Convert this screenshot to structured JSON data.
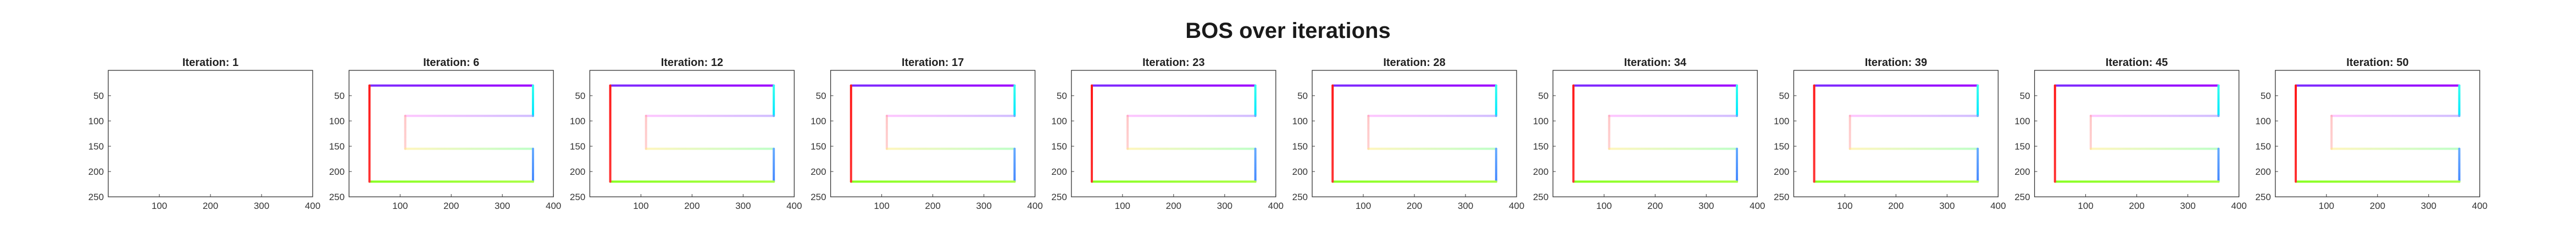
{
  "figure": {
    "title": "BOS over iterations"
  },
  "chart_data": [
    {
      "type": "line",
      "title": "Iteration: 1",
      "xlim": [
        0,
        400
      ],
      "ylim": [
        0,
        250
      ],
      "y_reversed": true,
      "xticks": [
        100,
        200,
        300,
        400
      ],
      "yticks": [
        50,
        100,
        150,
        200,
        250
      ],
      "grid": false,
      "show_path": false
    },
    {
      "type": "line",
      "title": "Iteration: 6",
      "xlim": [
        0,
        400
      ],
      "ylim": [
        0,
        250
      ],
      "y_reversed": true,
      "xticks": [
        100,
        200,
        300,
        400
      ],
      "yticks": [
        50,
        100,
        150,
        200,
        250
      ],
      "grid": false,
      "show_path": true
    },
    {
      "type": "line",
      "title": "Iteration: 12",
      "xlim": [
        0,
        400
      ],
      "ylim": [
        0,
        250
      ],
      "y_reversed": true,
      "xticks": [
        100,
        200,
        300,
        400
      ],
      "yticks": [
        50,
        100,
        150,
        200,
        250
      ],
      "grid": false,
      "show_path": true
    },
    {
      "type": "line",
      "title": "Iteration: 17",
      "xlim": [
        0,
        400
      ],
      "ylim": [
        0,
        250
      ],
      "y_reversed": true,
      "xticks": [
        100,
        200,
        300,
        400
      ],
      "yticks": [
        50,
        100,
        150,
        200,
        250
      ],
      "grid": false,
      "show_path": true
    },
    {
      "type": "line",
      "title": "Iteration: 23",
      "xlim": [
        0,
        400
      ],
      "ylim": [
        0,
        250
      ],
      "y_reversed": true,
      "xticks": [
        100,
        200,
        300,
        400
      ],
      "yticks": [
        50,
        100,
        150,
        200,
        250
      ],
      "grid": false,
      "show_path": true
    },
    {
      "type": "line",
      "title": "Iteration: 28",
      "xlim": [
        0,
        400
      ],
      "ylim": [
        0,
        250
      ],
      "y_reversed": true,
      "xticks": [
        100,
        200,
        300,
        400
      ],
      "yticks": [
        50,
        100,
        150,
        200,
        250
      ],
      "grid": false,
      "show_path": true
    },
    {
      "type": "line",
      "title": "Iteration: 34",
      "xlim": [
        0,
        400
      ],
      "ylim": [
        0,
        250
      ],
      "y_reversed": true,
      "xticks": [
        100,
        200,
        300,
        400
      ],
      "yticks": [
        50,
        100,
        150,
        200,
        250
      ],
      "grid": false,
      "show_path": true
    },
    {
      "type": "line",
      "title": "Iteration: 39",
      "xlim": [
        0,
        400
      ],
      "ylim": [
        0,
        250
      ],
      "y_reversed": true,
      "xticks": [
        100,
        200,
        300,
        400
      ],
      "yticks": [
        50,
        100,
        150,
        200,
        250
      ],
      "grid": false,
      "show_path": true
    },
    {
      "type": "line",
      "title": "Iteration: 45",
      "xlim": [
        0,
        400
      ],
      "ylim": [
        0,
        250
      ],
      "y_reversed": true,
      "xticks": [
        100,
        200,
        300,
        400
      ],
      "yticks": [
        50,
        100,
        150,
        200,
        250
      ],
      "grid": false,
      "show_path": true
    },
    {
      "type": "line",
      "title": "Iteration: 50",
      "xlim": [
        0,
        400
      ],
      "ylim": [
        0,
        250
      ],
      "y_reversed": true,
      "xticks": [
        100,
        200,
        300,
        400
      ],
      "yticks": [
        50,
        100,
        150,
        200,
        250
      ],
      "grid": false,
      "show_path": true
    }
  ],
  "path_segments": [
    {
      "x": [
        40,
        360
      ],
      "y": [
        30,
        30
      ],
      "colors": [
        "#7b2cff",
        "#a000ff"
      ],
      "stroke": "strong"
    },
    {
      "x": [
        360,
        360
      ],
      "y": [
        30,
        90
      ],
      "colors": [
        "#33ffee",
        "#00e5ff"
      ],
      "stroke": "strong"
    },
    {
      "x": [
        110,
        360
      ],
      "y": [
        90,
        90
      ],
      "colors": [
        "#ff99ff",
        "#aa88ff"
      ],
      "stroke": "faint"
    },
    {
      "x": [
        110,
        110
      ],
      "y": [
        90,
        155
      ],
      "colors": [
        "#ff9999",
        "#ffaaaa"
      ],
      "stroke": "faint"
    },
    {
      "x": [
        110,
        360
      ],
      "y": [
        155,
        155
      ],
      "colors": [
        "#ffee88",
        "#88ff99"
      ],
      "stroke": "faint"
    },
    {
      "x": [
        360,
        360
      ],
      "y": [
        155,
        220
      ],
      "colors": [
        "#66aaff",
        "#4488ff"
      ],
      "stroke": "strong"
    },
    {
      "x": [
        40,
        360
      ],
      "y": [
        220,
        220
      ],
      "colors": [
        "#88ff22",
        "#aaff44"
      ],
      "stroke": "strong"
    },
    {
      "x": [
        40,
        40
      ],
      "y": [
        30,
        220
      ],
      "colors": [
        "#ff1a1a",
        "#ff3333"
      ],
      "stroke": "strong"
    }
  ]
}
